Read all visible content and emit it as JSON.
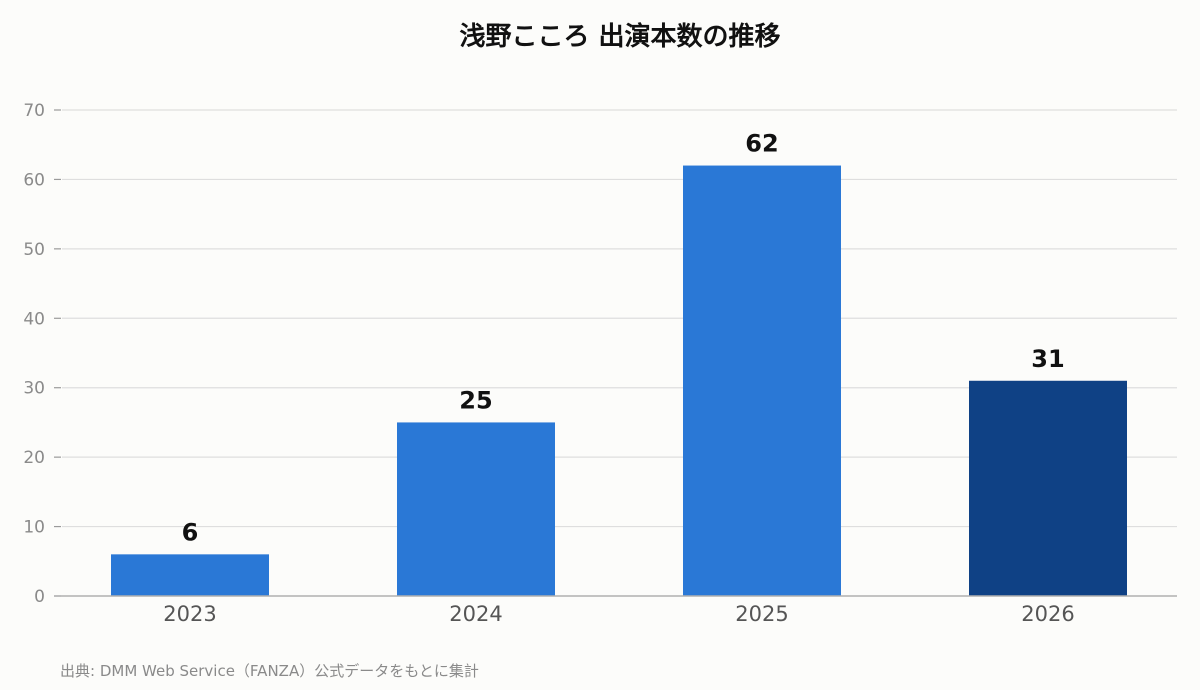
{
  "chart_data": {
    "type": "bar",
    "title": "浅野こころ 出演本数の推移",
    "categories": [
      "2023",
      "2024",
      "2025",
      "2026"
    ],
    "values": [
      6,
      25,
      62,
      31
    ],
    "ylim": [
      0,
      70
    ],
    "yticks": [
      0,
      10,
      20,
      30,
      40,
      50,
      60,
      70
    ],
    "grid": true,
    "xlabel": "",
    "ylabel": "",
    "colors": [
      "#2a78d6",
      "#2a78d6",
      "#2a78d6",
      "#0f4185"
    ]
  },
  "source_note": "出典: DMM Web Service（FANZA）公式データをもとに集計"
}
